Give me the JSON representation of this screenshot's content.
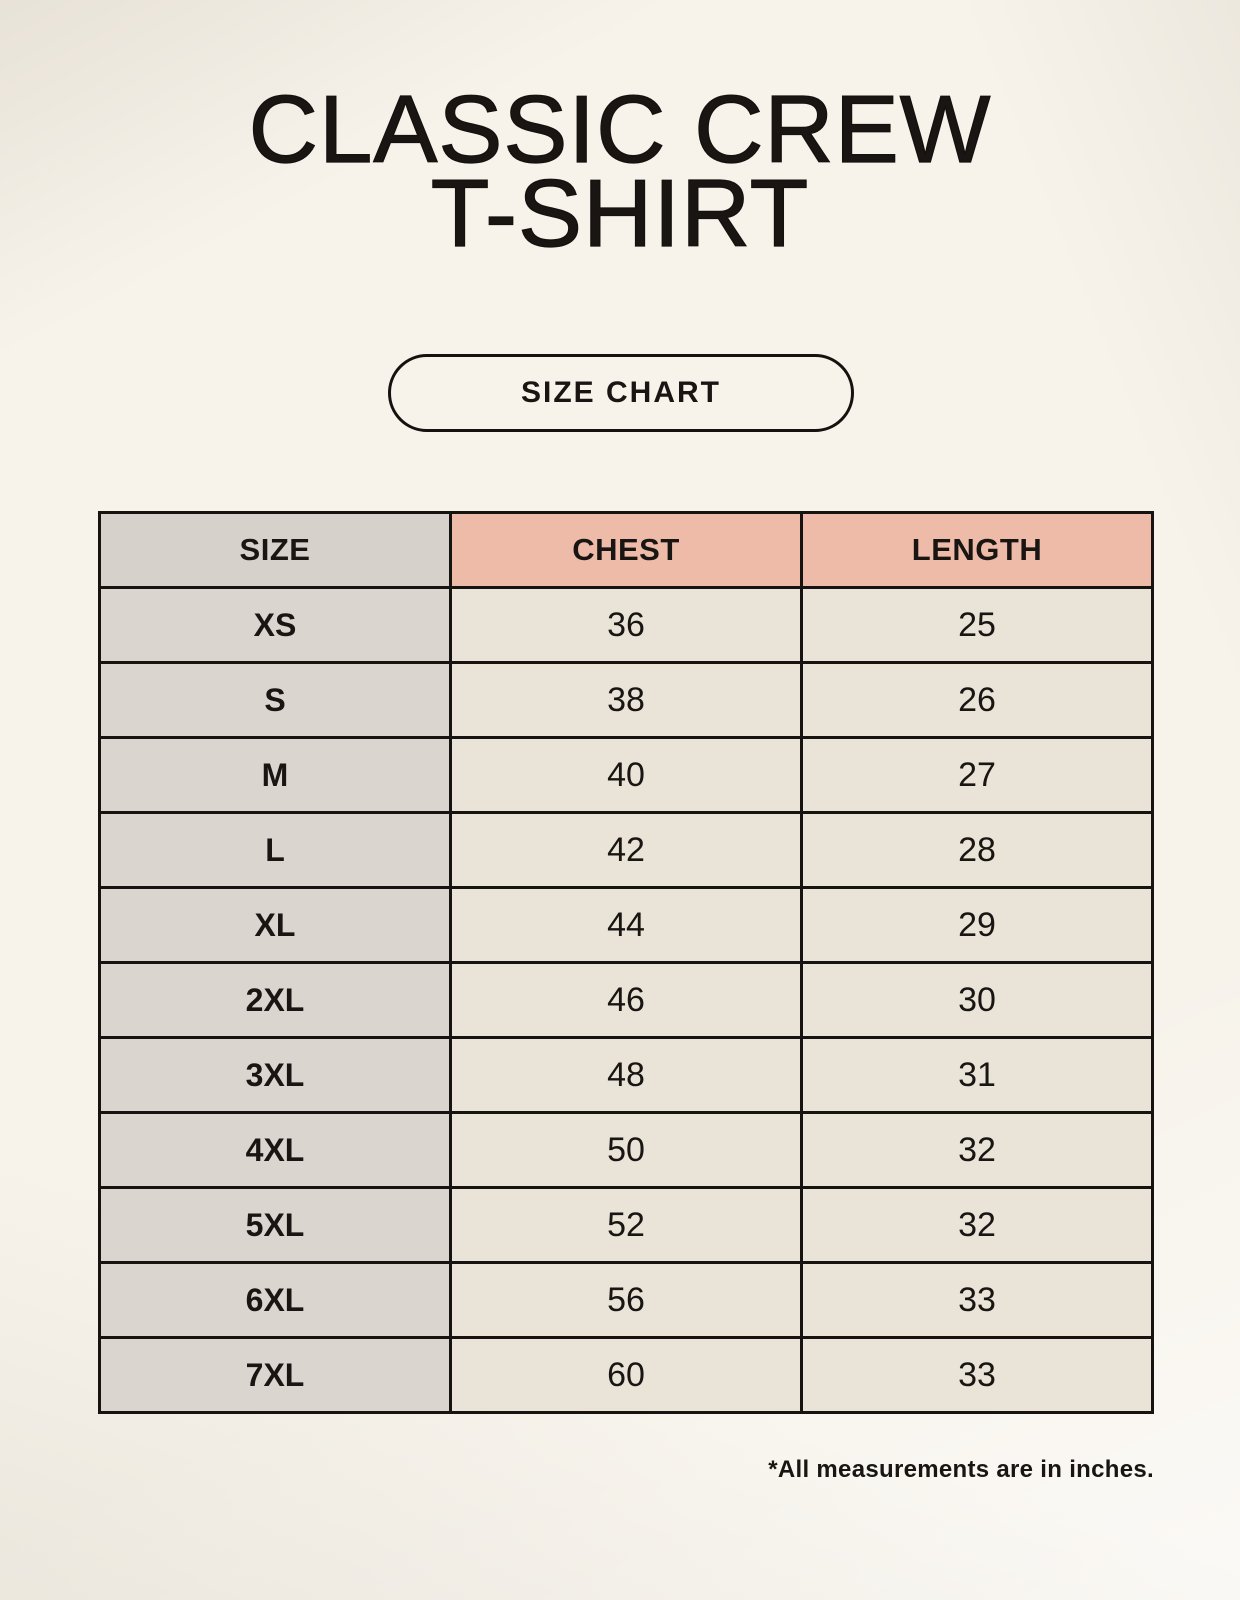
{
  "page": {
    "title_line1": "CLASSIC CREW",
    "title_line2": "T-SHIRT",
    "size_chart_button_label": "SIZE CHART",
    "footnote": "*All measurements are in inches."
  },
  "colors": {
    "background": "#f7f3eb",
    "header_pink": "#eebba9",
    "size_column_gray": "#d9d3cd",
    "value_cell_beige": "#e9e3d8",
    "border_black": "#161310",
    "text_black": "#181512"
  },
  "chart_data": {
    "type": "table",
    "title": "CLASSIC CREW T-SHIRT — SIZE CHART",
    "units": "inches",
    "columns": [
      "SIZE",
      "CHEST",
      "LENGTH"
    ],
    "rows": [
      [
        "XS",
        "36",
        "25"
      ],
      [
        "S",
        "38",
        "26"
      ],
      [
        "M",
        "40",
        "27"
      ],
      [
        "L",
        "42",
        "28"
      ],
      [
        "XL",
        "44",
        "29"
      ],
      [
        "2XL",
        "46",
        "30"
      ],
      [
        "3XL",
        "48",
        "31"
      ],
      [
        "4XL",
        "50",
        "32"
      ],
      [
        "5XL",
        "52",
        "32"
      ],
      [
        "6XL",
        "56",
        "33"
      ],
      [
        "7XL",
        "60",
        "33"
      ]
    ]
  }
}
